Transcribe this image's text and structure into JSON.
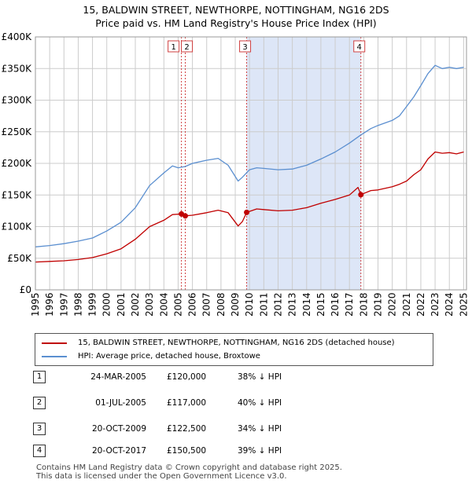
{
  "title_line1": "15, BALDWIN STREET, NEWTHORPE, NOTTINGHAM, NG16 2DS",
  "title_line2": "Price paid vs. HM Land Registry's House Price Index (HPI)",
  "colors": {
    "property": "#c00000",
    "hpi": "#5b8fd0",
    "shade": "#dde6f7",
    "grid": "#cccccc",
    "marker_line": "#d04040"
  },
  "legend": {
    "property_label": "15, BALDWIN STREET, NEWTHORPE, NOTTINGHAM, NG16 2DS (detached house)",
    "hpi_label": "HPI: Average price, detached house, Broxtowe"
  },
  "transactions": [
    {
      "num": "1",
      "date": "24-MAR-2005",
      "price": "£120,000",
      "hpi_diff": "38% ↓ HPI"
    },
    {
      "num": "2",
      "date": "01-JUL-2005",
      "price": "£117,000",
      "hpi_diff": "40% ↓ HPI"
    },
    {
      "num": "3",
      "date": "20-OCT-2009",
      "price": "£122,500",
      "hpi_diff": "34% ↓ HPI"
    },
    {
      "num": "4",
      "date": "20-OCT-2017",
      "price": "£150,500",
      "hpi_diff": "39% ↓ HPI"
    }
  ],
  "footer_line1": "Contains HM Land Registry data © Crown copyright and database right 2025.",
  "footer_line2": "This data is licensed under the Open Government Licence v3.0.",
  "chart_data": {
    "type": "line",
    "title": "Price paid vs. HM Land Registry's House Price Index (HPI)",
    "xlabel": "",
    "ylabel": "",
    "xlim": [
      1995,
      2025.2
    ],
    "ylim": [
      0,
      400000
    ],
    "yticks": [
      0,
      50000,
      100000,
      150000,
      200000,
      250000,
      300000,
      350000,
      400000
    ],
    "ytick_labels": [
      "£0",
      "£50K",
      "£100K",
      "£150K",
      "£200K",
      "£250K",
      "£300K",
      "£350K",
      "£400K"
    ],
    "xticks": [
      1995,
      1996,
      1997,
      1998,
      1999,
      2000,
      2001,
      2002,
      2003,
      2004,
      2005,
      2006,
      2007,
      2008,
      2009,
      2010,
      2011,
      2012,
      2013,
      2014,
      2015,
      2016,
      2017,
      2018,
      2019,
      2020,
      2021,
      2022,
      2023,
      2024,
      2025
    ],
    "grid": true,
    "shaded_region": [
      2009.8,
      2017.8
    ],
    "markers": [
      {
        "label": "1",
        "x": 2005.23,
        "y": 120000
      },
      {
        "label": "2",
        "x": 2005.5,
        "y": 117000
      },
      {
        "label": "3",
        "x": 2009.8,
        "y": 122500
      },
      {
        "label": "4",
        "x": 2017.8,
        "y": 150500
      }
    ],
    "series": [
      {
        "name": "15, BALDWIN STREET, NEWTHORPE, NOTTINGHAM, NG16 2DS (detached house)",
        "x": [
          1995,
          1996,
          1997,
          1998,
          1999,
          2000,
          2001,
          2002,
          2003,
          2004,
          2004.6,
          2005.23,
          2005.5,
          2006,
          2007,
          2007.8,
          2008.5,
          2009.2,
          2009.5,
          2009.8,
          2010.5,
          2011,
          2012,
          2013,
          2014,
          2015,
          2016,
          2017,
          2017.6,
          2017.8,
          2018.5,
          2019,
          2020,
          2020.5,
          2021,
          2021.5,
          2022,
          2022.5,
          2023,
          2023.5,
          2024,
          2024.5,
          2025
        ],
        "values": [
          44000,
          45000,
          46000,
          48000,
          51000,
          57000,
          65000,
          80000,
          100000,
          110000,
          119000,
          120000,
          117000,
          118000,
          122000,
          126000,
          122000,
          101000,
          108000,
          122500,
          128000,
          127000,
          125000,
          126000,
          130000,
          137000,
          143000,
          150000,
          162000,
          150500,
          157000,
          158000,
          163000,
          167000,
          172000,
          182000,
          190000,
          207000,
          218000,
          216000,
          217000,
          215000,
          218000
        ]
      },
      {
        "name": "HPI: Average price, detached house, Broxtowe",
        "x": [
          1995,
          1996,
          1997,
          1998,
          1999,
          2000,
          2001,
          2002,
          2003,
          2004,
          2004.6,
          2005,
          2005.5,
          2006,
          2007,
          2007.8,
          2008.5,
          2009.2,
          2009.5,
          2010,
          2010.5,
          2011,
          2012,
          2013,
          2014,
          2015,
          2016,
          2017,
          2017.8,
          2018.5,
          2019,
          2020,
          2020.5,
          2021,
          2021.5,
          2022,
          2022.5,
          2023,
          2023.5,
          2024,
          2024.5,
          2025
        ],
        "values": [
          68000,
          70000,
          73000,
          77000,
          82000,
          93000,
          107000,
          130000,
          165000,
          185000,
          196000,
          193000,
          195000,
          200000,
          205000,
          208000,
          197000,
          172000,
          178000,
          190000,
          193000,
          192000,
          190000,
          191000,
          197000,
          207000,
          218000,
          232000,
          245000,
          255000,
          260000,
          268000,
          275000,
          290000,
          305000,
          323000,
          342000,
          355000,
          350000,
          352000,
          350000,
          352000
        ]
      }
    ]
  }
}
